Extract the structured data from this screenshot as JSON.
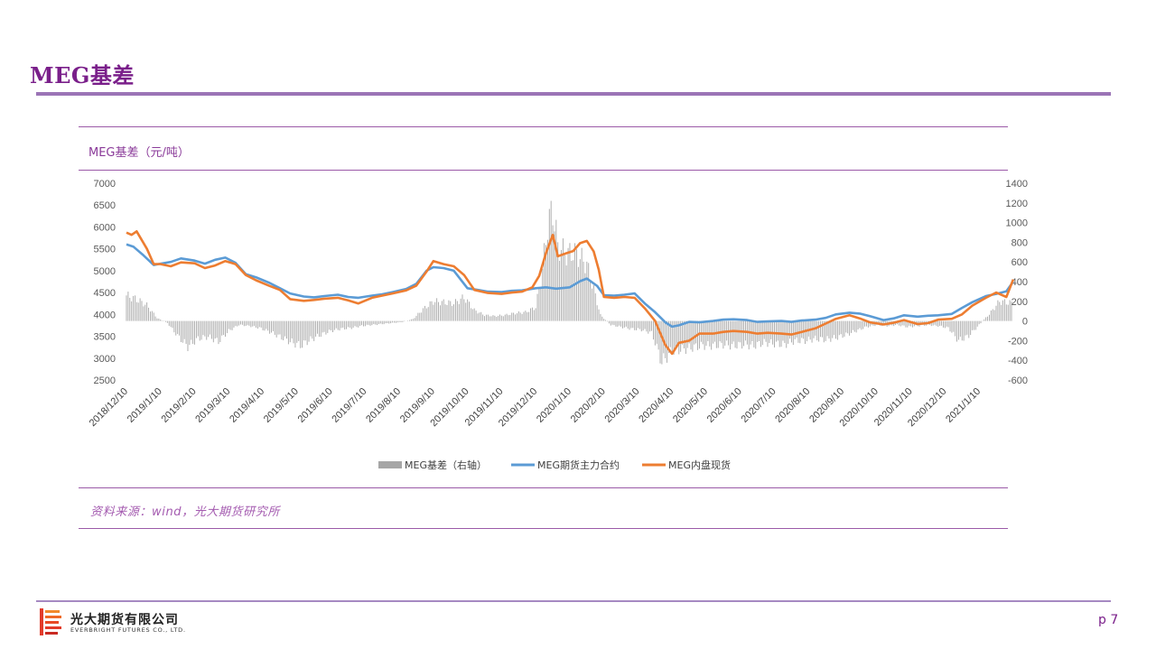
{
  "page": {
    "title": "MEG基差",
    "chart_title": "MEG基差（元/吨）",
    "source": "资料来源：wind，光大期货研究所",
    "company_cn": "光大期货有限公司",
    "company_en": "EVERBRIGHT FUTURES CO., LTD.",
    "page_number": "p 7"
  },
  "colors": {
    "bars": "#a6a6a6",
    "futures": "#5b9bd5",
    "spot": "#ed7d31",
    "accent": "#7a1f8a"
  },
  "chart_data": {
    "type": "line",
    "title": "MEG基差（元/吨）",
    "left_axis": {
      "min": 2500,
      "max": 7000,
      "ticks": [
        "2500",
        "3000",
        "3500",
        "4000",
        "4500",
        "5000",
        "5500",
        "6000",
        "6500",
        "7000"
      ]
    },
    "right_axis": {
      "min": -600,
      "max": 1400,
      "ticks": [
        "-600",
        "-400",
        "-200",
        "0",
        "200",
        "400",
        "600",
        "800",
        "1000",
        "1200",
        "1400"
      ]
    },
    "x_labels": [
      "2018/12/10",
      "2019/1/10",
      "2019/2/10",
      "2019/3/10",
      "2019/4/10",
      "2019/5/10",
      "2019/6/10",
      "2019/7/10",
      "2019/8/10",
      "2019/9/10",
      "2019/10/10",
      "2019/11/10",
      "2019/12/10",
      "2020/1/10",
      "2020/2/10",
      "2020/3/10",
      "2020/4/10",
      "2020/5/10",
      "2020/6/10",
      "2020/7/10",
      "2020/8/10",
      "2020/9/10",
      "2020/10/10",
      "2020/11/10",
      "2020/12/10",
      "2021/1/10"
    ],
    "legend": [
      "MEG基差（右轴）",
      "MEG期货主力合约",
      "MEG内盘现货"
    ],
    "legend_position": "bottom",
    "series": [
      {
        "name": "MEG期货主力合约",
        "axis": "left",
        "points": [
          [
            0,
            5600
          ],
          [
            0.2,
            5550
          ],
          [
            0.5,
            5350
          ],
          [
            0.8,
            5130
          ],
          [
            1.0,
            5160
          ],
          [
            1.3,
            5200
          ],
          [
            1.6,
            5280
          ],
          [
            2.0,
            5230
          ],
          [
            2.3,
            5160
          ],
          [
            2.6,
            5250
          ],
          [
            2.9,
            5300
          ],
          [
            3.2,
            5180
          ],
          [
            3.5,
            4920
          ],
          [
            3.8,
            4850
          ],
          [
            4.2,
            4720
          ],
          [
            4.5,
            4600
          ],
          [
            4.8,
            4480
          ],
          [
            5.2,
            4410
          ],
          [
            5.5,
            4390
          ],
          [
            5.8,
            4420
          ],
          [
            6.2,
            4450
          ],
          [
            6.5,
            4400
          ],
          [
            6.8,
            4380
          ],
          [
            7.2,
            4430
          ],
          [
            7.5,
            4460
          ],
          [
            7.8,
            4510
          ],
          [
            8.2,
            4580
          ],
          [
            8.5,
            4700
          ],
          [
            8.8,
            5000
          ],
          [
            9.0,
            5080
          ],
          [
            9.3,
            5060
          ],
          [
            9.6,
            5000
          ],
          [
            10.0,
            4600
          ],
          [
            10.3,
            4560
          ],
          [
            10.6,
            4520
          ],
          [
            11.0,
            4510
          ],
          [
            11.3,
            4540
          ],
          [
            11.6,
            4550
          ],
          [
            12.0,
            4600
          ],
          [
            12.3,
            4620
          ],
          [
            12.6,
            4590
          ],
          [
            13.0,
            4620
          ],
          [
            13.3,
            4760
          ],
          [
            13.5,
            4820
          ],
          [
            13.8,
            4650
          ],
          [
            14.0,
            4440
          ],
          [
            14.3,
            4430
          ],
          [
            14.6,
            4450
          ],
          [
            14.9,
            4480
          ],
          [
            15.2,
            4250
          ],
          [
            15.5,
            4050
          ],
          [
            15.8,
            3820
          ],
          [
            16.0,
            3720
          ],
          [
            16.2,
            3750
          ],
          [
            16.5,
            3830
          ],
          [
            16.8,
            3820
          ],
          [
            17.2,
            3850
          ],
          [
            17.5,
            3880
          ],
          [
            17.8,
            3890
          ],
          [
            18.2,
            3870
          ],
          [
            18.5,
            3830
          ],
          [
            18.8,
            3840
          ],
          [
            19.2,
            3850
          ],
          [
            19.5,
            3830
          ],
          [
            19.8,
            3860
          ],
          [
            20.2,
            3880
          ],
          [
            20.5,
            3920
          ],
          [
            20.8,
            4000
          ],
          [
            21.2,
            4040
          ],
          [
            21.5,
            4020
          ],
          [
            21.8,
            3960
          ],
          [
            22.2,
            3870
          ],
          [
            22.5,
            3910
          ],
          [
            22.8,
            3980
          ],
          [
            23.2,
            3950
          ],
          [
            23.5,
            3970
          ],
          [
            23.8,
            3980
          ],
          [
            24.2,
            4010
          ],
          [
            24.5,
            4150
          ],
          [
            24.8,
            4280
          ],
          [
            25.2,
            4420
          ],
          [
            25.5,
            4470
          ],
          [
            25.8,
            4530
          ],
          [
            26.0,
            4750
          ]
        ]
      },
      {
        "name": "MEG内盘现货",
        "axis": "left",
        "points": [
          [
            0,
            5870
          ],
          [
            0.15,
            5820
          ],
          [
            0.3,
            5900
          ],
          [
            0.6,
            5500
          ],
          [
            0.8,
            5150
          ],
          [
            1.0,
            5150
          ],
          [
            1.3,
            5100
          ],
          [
            1.6,
            5190
          ],
          [
            2.0,
            5170
          ],
          [
            2.3,
            5060
          ],
          [
            2.6,
            5120
          ],
          [
            2.9,
            5220
          ],
          [
            3.2,
            5150
          ],
          [
            3.5,
            4900
          ],
          [
            3.8,
            4780
          ],
          [
            4.2,
            4650
          ],
          [
            4.5,
            4560
          ],
          [
            4.8,
            4350
          ],
          [
            5.2,
            4310
          ],
          [
            5.5,
            4330
          ],
          [
            5.8,
            4360
          ],
          [
            6.2,
            4380
          ],
          [
            6.5,
            4320
          ],
          [
            6.8,
            4250
          ],
          [
            7.2,
            4380
          ],
          [
            7.5,
            4430
          ],
          [
            7.8,
            4480
          ],
          [
            8.2,
            4550
          ],
          [
            8.5,
            4660
          ],
          [
            8.8,
            4980
          ],
          [
            9.0,
            5220
          ],
          [
            9.3,
            5150
          ],
          [
            9.6,
            5100
          ],
          [
            9.9,
            4900
          ],
          [
            10.2,
            4560
          ],
          [
            10.6,
            4490
          ],
          [
            11.0,
            4470
          ],
          [
            11.3,
            4500
          ],
          [
            11.6,
            4520
          ],
          [
            11.9,
            4620
          ],
          [
            12.1,
            4880
          ],
          [
            12.3,
            5400
          ],
          [
            12.5,
            5820
          ],
          [
            12.65,
            5330
          ],
          [
            12.9,
            5400
          ],
          [
            13.1,
            5450
          ],
          [
            13.3,
            5630
          ],
          [
            13.5,
            5680
          ],
          [
            13.7,
            5440
          ],
          [
            13.85,
            5020
          ],
          [
            14.0,
            4400
          ],
          [
            14.3,
            4380
          ],
          [
            14.6,
            4400
          ],
          [
            14.9,
            4380
          ],
          [
            15.2,
            4140
          ],
          [
            15.5,
            3850
          ],
          [
            15.8,
            3300
          ],
          [
            16.0,
            3100
          ],
          [
            16.2,
            3350
          ],
          [
            16.5,
            3400
          ],
          [
            16.8,
            3560
          ],
          [
            17.2,
            3560
          ],
          [
            17.5,
            3600
          ],
          [
            17.8,
            3620
          ],
          [
            18.2,
            3600
          ],
          [
            18.5,
            3560
          ],
          [
            18.8,
            3580
          ],
          [
            19.2,
            3560
          ],
          [
            19.5,
            3540
          ],
          [
            19.8,
            3600
          ],
          [
            20.2,
            3680
          ],
          [
            20.5,
            3790
          ],
          [
            20.8,
            3900
          ],
          [
            21.2,
            3980
          ],
          [
            21.5,
            3910
          ],
          [
            21.8,
            3820
          ],
          [
            22.2,
            3770
          ],
          [
            22.5,
            3810
          ],
          [
            22.8,
            3870
          ],
          [
            23.2,
            3780
          ],
          [
            23.5,
            3800
          ],
          [
            23.8,
            3880
          ],
          [
            24.2,
            3900
          ],
          [
            24.5,
            4000
          ],
          [
            24.8,
            4200
          ],
          [
            25.2,
            4380
          ],
          [
            25.5,
            4500
          ],
          [
            25.8,
            4400
          ],
          [
            26.0,
            4800
          ]
        ]
      },
      {
        "name": "MEG基差（右轴）",
        "axis": "right",
        "points": [
          [
            0,
            260
          ],
          [
            0.3,
            220
          ],
          [
            0.6,
            160
          ],
          [
            0.9,
            30
          ],
          [
            1.2,
            -20
          ],
          [
            1.5,
            -150
          ],
          [
            1.8,
            -260
          ],
          [
            2.1,
            -180
          ],
          [
            2.4,
            -160
          ],
          [
            2.7,
            -210
          ],
          [
            3.0,
            -100
          ],
          [
            3.3,
            -40
          ],
          [
            3.6,
            -50
          ],
          [
            3.9,
            -70
          ],
          [
            4.2,
            -110
          ],
          [
            4.5,
            -160
          ],
          [
            4.8,
            -210
          ],
          [
            5.1,
            -250
          ],
          [
            5.4,
            -190
          ],
          [
            5.7,
            -140
          ],
          [
            6.0,
            -100
          ],
          [
            6.3,
            -80
          ],
          [
            6.6,
            -70
          ],
          [
            6.9,
            -50
          ],
          [
            7.2,
            -40
          ],
          [
            7.5,
            -30
          ],
          [
            7.8,
            -20
          ],
          [
            8.1,
            -10
          ],
          [
            8.4,
            20
          ],
          [
            8.7,
            120
          ],
          [
            9.0,
            200
          ],
          [
            9.3,
            190
          ],
          [
            9.6,
            180
          ],
          [
            9.9,
            240
          ],
          [
            10.2,
            110
          ],
          [
            10.5,
            60
          ],
          [
            10.8,
            50
          ],
          [
            11.1,
            60
          ],
          [
            11.4,
            80
          ],
          [
            11.7,
            90
          ],
          [
            12.0,
            140
          ],
          [
            12.2,
            520
          ],
          [
            12.35,
            980
          ],
          [
            12.5,
            1130
          ],
          [
            12.65,
            760
          ],
          [
            12.9,
            680
          ],
          [
            13.1,
            700
          ],
          [
            13.3,
            650
          ],
          [
            13.5,
            570
          ],
          [
            13.7,
            320
          ],
          [
            13.9,
            60
          ],
          [
            14.2,
            -40
          ],
          [
            14.5,
            -60
          ],
          [
            14.8,
            -80
          ],
          [
            15.1,
            -90
          ],
          [
            15.4,
            -120
          ],
          [
            15.7,
            -420
          ],
          [
            16.0,
            -300
          ],
          [
            16.3,
            -290
          ],
          [
            16.6,
            -270
          ],
          [
            16.9,
            -250
          ],
          [
            17.2,
            -250
          ],
          [
            17.5,
            -240
          ],
          [
            17.8,
            -250
          ],
          [
            18.1,
            -240
          ],
          [
            18.4,
            -250
          ],
          [
            18.7,
            -220
          ],
          [
            19.0,
            -230
          ],
          [
            19.3,
            -240
          ],
          [
            19.6,
            -200
          ],
          [
            19.9,
            -200
          ],
          [
            20.2,
            -180
          ],
          [
            20.5,
            -190
          ],
          [
            20.8,
            -170
          ],
          [
            21.1,
            -140
          ],
          [
            21.4,
            -100
          ],
          [
            21.7,
            -60
          ],
          [
            22.0,
            -40
          ],
          [
            22.3,
            -50
          ],
          [
            22.6,
            -40
          ],
          [
            22.9,
            -60
          ],
          [
            23.2,
            -50
          ],
          [
            23.5,
            -40
          ],
          [
            23.8,
            -50
          ],
          [
            24.1,
            -70
          ],
          [
            24.4,
            -200
          ],
          [
            24.7,
            -150
          ],
          [
            25.0,
            -40
          ],
          [
            25.3,
            70
          ],
          [
            25.6,
            200
          ],
          [
            26.0,
            180
          ]
        ]
      }
    ]
  }
}
